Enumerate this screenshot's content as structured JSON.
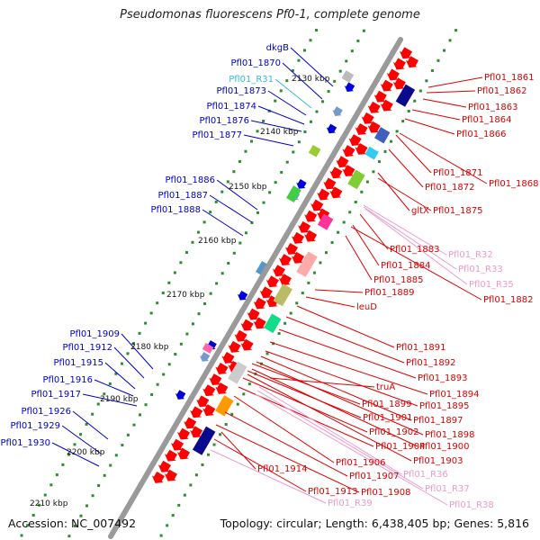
{
  "title": "Pseudomonas fluorescens Pf0-1, complete genome",
  "accession": "Accession: NC_007492",
  "topology": "Topology: circular; Length: 6,438,405 bp; Genes: 5,816",
  "colors": {
    "backbone": "#999999",
    "dots": "#2e8b2e",
    "left_label": "#0000cc",
    "left_rna": "#33bbdd",
    "right_label": "#dd0000",
    "right_rna": "#ee99cc",
    "gene_red": "#ff0000"
  },
  "kbp_labels": [
    "2130 kbp",
    "2140 kbp",
    "2150 kbp",
    "2160 kbp",
    "2170 kbp",
    "2180 kbp",
    "2190 kbp",
    "2200 kbp",
    "2210 kbp"
  ],
  "left_labels": [
    "dkgB",
    "Pfl01_1870",
    "Pfl01_R31",
    "Pfl01_1873",
    "Pfl01_1874",
    "Pfl01_1876",
    "Pfl01_1877",
    "Pfl01_1886",
    "Pfl01_1887",
    "Pfl01_1888",
    "Pfl01_1909",
    "Pfl01_1912",
    "Pfl01_1915",
    "Pfl01_1916",
    "Pfl01_1917",
    "Pfl01_1926",
    "Pfl01_1929",
    "Pfl01_1930"
  ],
  "right_labels": [
    "Pfl01_1861",
    "Pfl01_1862",
    "Pfl01_1863",
    "Pfl01_1864",
    "Pfl01_1866",
    "Pfl01_1871",
    "Pfl01_1868",
    "Pfl01_1872",
    "gltX",
    "Pfl01_1875",
    "Pfl01_1883",
    "Pfl01_R32",
    "Pfl01_1884",
    "Pfl01_R33",
    "Pfl01_1885",
    "Pfl01_R35",
    "Pfl01_1882",
    "Pfl01_1889",
    "leuD",
    "Pfl01_1891",
    "Pfl01_1892",
    "Pfl01_1893",
    "truA",
    "Pfl01_1894",
    "Pfl01_1899",
    "Pfl01_1895",
    "Pfl01_1901",
    "Pfl01_1897",
    "Pfl01_1902",
    "Pfl01_1898",
    "Pfl01_1904",
    "Pfl01_1900",
    "Pfl01_1903",
    "Pfl01_1906",
    "Pfl01_1914",
    "Pfl01_1907",
    "Pfl01_R36",
    "Pfl01_1913",
    "Pfl01_1908",
    "Pfl01_R37",
    "Pfl01_R39",
    "Pfl01_R38"
  ]
}
